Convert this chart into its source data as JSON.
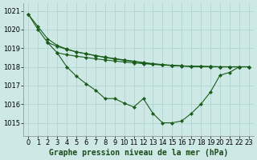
{
  "background_color": "#cde8e5",
  "grid_color": "#b0d4d0",
  "line_color": "#1a5c1a",
  "marker_color": "#1a5c1a",
  "xlabel": "Graphe pression niveau de la mer (hPa)",
  "xlabel_fontsize": 7,
  "tick_fontsize": 6,
  "ylim": [
    1014.3,
    1021.4
  ],
  "xlim": [
    -0.5,
    23.5
  ],
  "yticks": [
    1015,
    1016,
    1017,
    1018,
    1019,
    1020,
    1021
  ],
  "xticks": [
    0,
    1,
    2,
    3,
    4,
    5,
    6,
    7,
    8,
    9,
    10,
    11,
    12,
    13,
    14,
    15,
    16,
    17,
    18,
    19,
    20,
    21,
    22,
    23
  ],
  "series1_x": [
    0,
    1,
    2,
    3,
    4,
    5,
    6,
    7,
    8,
    9,
    10,
    11,
    12,
    13,
    14,
    15,
    16,
    17,
    18,
    19,
    20,
    21,
    22
  ],
  "series1_y": [
    1020.8,
    1020.0,
    1019.3,
    1018.75,
    1018.0,
    1017.5,
    1017.1,
    1016.75,
    1016.3,
    1016.3,
    1016.05,
    1015.85,
    1016.3,
    1015.5,
    1015.0,
    1015.0,
    1015.1,
    1015.5,
    1016.0,
    1016.65,
    1017.55,
    1017.7,
    1018.0
  ],
  "series2_x": [
    0,
    1,
    2,
    3,
    4,
    5,
    6,
    7,
    8,
    9,
    10,
    11,
    12,
    13,
    14,
    15,
    16,
    17,
    18,
    19,
    20,
    21,
    22,
    23
  ],
  "series2_y": [
    1020.8,
    1020.15,
    1019.5,
    1019.15,
    1018.95,
    1018.8,
    1018.7,
    1018.6,
    1018.5,
    1018.42,
    1018.35,
    1018.28,
    1018.2,
    1018.15,
    1018.1,
    1018.07,
    1018.04,
    1018.02,
    1018.01,
    1018.0,
    1018.0,
    1018.0,
    1018.0,
    1018.0
  ],
  "series3_x": [
    2,
    3,
    4,
    5,
    6,
    7,
    8,
    9,
    10,
    11,
    12,
    13,
    14,
    15,
    16,
    17,
    18,
    19,
    20,
    21,
    22,
    23
  ],
  "series3_y": [
    1019.3,
    1019.1,
    1018.93,
    1018.8,
    1018.7,
    1018.6,
    1018.52,
    1018.44,
    1018.37,
    1018.3,
    1018.23,
    1018.17,
    1018.12,
    1018.08,
    1018.05,
    1018.03,
    1018.02,
    1018.01,
    1018.0,
    1018.0,
    1018.0,
    1018.0
  ],
  "series4_x": [
    3,
    4,
    5,
    6,
    7,
    8,
    9,
    10,
    11,
    12,
    13,
    14,
    15,
    16,
    17,
    18,
    19,
    20,
    21,
    22,
    23
  ],
  "series4_y": [
    1018.75,
    1018.65,
    1018.57,
    1018.5,
    1018.43,
    1018.37,
    1018.31,
    1018.26,
    1018.21,
    1018.17,
    1018.13,
    1018.1,
    1018.07,
    1018.05,
    1018.03,
    1018.02,
    1018.01,
    1018.0,
    1018.0,
    1018.0,
    1018.0
  ]
}
